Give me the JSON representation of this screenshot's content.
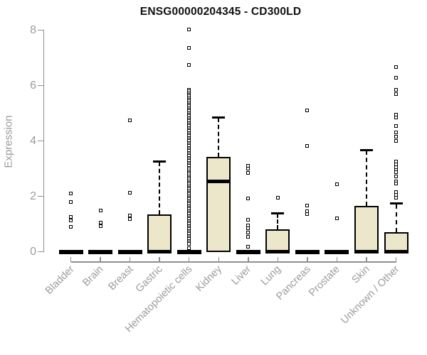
{
  "title": "ENSG00000204345 - CD300LD",
  "colors": {
    "box_fill": "#ece7cb",
    "box_border": "#000000",
    "median": "#000000",
    "outlier": "#000000",
    "axis": "#8f8f8f",
    "tick_label": "#9b9b9b",
    "title": "#111111",
    "background": "#ffffff"
  },
  "chart_data": {
    "type": "boxplot",
    "title": "ENSG00000204345 - CD300LD",
    "xlabel": "",
    "ylabel": "Expression",
    "ylim": [
      0,
      8
    ],
    "y_ticks": [
      0,
      2,
      4,
      6,
      8
    ],
    "grid": false,
    "legend": false,
    "categories": [
      "Bladder",
      "Brain",
      "Breast",
      "Gastric",
      "Hematopoietic cells",
      "Kidney",
      "Liver",
      "Lung",
      "Pancreas",
      "Prostate",
      "Skin",
      "Unknown / Other"
    ],
    "series": [
      {
        "name": "Bladder",
        "q1": 0,
        "median": 0,
        "q3": 0,
        "whisker_low": 0,
        "whisker_high": 0,
        "outliers": [
          2.09,
          1.79,
          1.25,
          1.12,
          0.9
        ]
      },
      {
        "name": "Brain",
        "q1": 0,
        "median": 0,
        "q3": 0,
        "whisker_low": 0,
        "whisker_high": 0,
        "outliers": [
          1.5,
          1.04,
          0.92
        ]
      },
      {
        "name": "Breast",
        "q1": 0,
        "median": 0,
        "q3": 0,
        "whisker_low": 0,
        "whisker_high": 0,
        "outliers": [
          4.74,
          2.12,
          1.3,
          1.18
        ]
      },
      {
        "name": "Gastric",
        "q1": 0,
        "median": 0,
        "q3": 1.33,
        "whisker_low": 0,
        "whisker_high": 3.26,
        "outliers": []
      },
      {
        "name": "Hematopoietic cells",
        "q1": 0,
        "median": 0,
        "q3": 0,
        "whisker_low": 0,
        "whisker_high": 0,
        "outliers": [
          8.03,
          7.35,
          6.75,
          5.85,
          5.79,
          5.73,
          5.67,
          5.61,
          5.55,
          5.49,
          5.43,
          5.37,
          5.31,
          5.25,
          5.19,
          5.13,
          5.07,
          5.01,
          4.95,
          4.89,
          4.83,
          4.77,
          4.71,
          4.65,
          4.59,
          4.53,
          4.47,
          4.41,
          4.35,
          4.29,
          4.23,
          4.17,
          4.11,
          4.05,
          3.99,
          3.93,
          3.87,
          3.81,
          3.75,
          3.69,
          3.63,
          3.57,
          3.51,
          3.45,
          3.39,
          3.33,
          3.27,
          3.21,
          3.15,
          3.09,
          3.03,
          2.97,
          2.91,
          2.85,
          2.79,
          2.73,
          2.67,
          2.61,
          2.55,
          2.49,
          2.43,
          2.37,
          2.31,
          2.25,
          2.19,
          2.13,
          2.07,
          2.01,
          1.95,
          1.89,
          1.83,
          1.77,
          1.71,
          1.65,
          1.59,
          1.53,
          1.47,
          1.41,
          1.35,
          1.29,
          1.23,
          1.17,
          1.11,
          1.05,
          0.99,
          0.93,
          0.87,
          0.81,
          0.75,
          0.69,
          0.63,
          0.57,
          0.51,
          0.45,
          0.39,
          0.33,
          0.27,
          0.13
        ]
      },
      {
        "name": "Kidney",
        "q1": 0,
        "median": 2.54,
        "q3": 3.41,
        "whisker_low": 0,
        "whisker_high": 4.85,
        "outliers": []
      },
      {
        "name": "Liver",
        "q1": 0,
        "median": 0,
        "q3": 0,
        "whisker_low": 0,
        "whisker_high": 0,
        "outliers": [
          3.1,
          3.0,
          2.85,
          1.92,
          1.15,
          0.95,
          0.85,
          0.7,
          0.55,
          0.18
        ]
      },
      {
        "name": "Lung",
        "q1": 0,
        "median": 0,
        "q3": 0.77,
        "whisker_low": 0,
        "whisker_high": 1.39,
        "outliers": [
          1.95
        ]
      },
      {
        "name": "Pancreas",
        "q1": 0,
        "median": 0,
        "q3": 0,
        "whisker_low": 0,
        "whisker_high": 0,
        "outliers": [
          5.1,
          3.82,
          1.67,
          1.45,
          1.35
        ]
      },
      {
        "name": "Prostate",
        "q1": 0,
        "median": 0,
        "q3": 0,
        "whisker_low": 0,
        "whisker_high": 0,
        "outliers": [
          2.44,
          1.2
        ]
      },
      {
        "name": "Skin",
        "q1": 0,
        "median": 0,
        "q3": 1.64,
        "whisker_low": 0,
        "whisker_high": 3.67,
        "outliers": []
      },
      {
        "name": "Unknown / Other",
        "q1": 0,
        "median": 0,
        "q3": 0.69,
        "whisker_low": 0,
        "whisker_high": 1.74,
        "outliers": [
          6.67,
          6.28,
          5.85,
          5.7,
          4.95,
          4.85,
          4.54,
          4.3,
          4.15,
          4.0,
          3.25,
          3.15,
          3.05,
          2.95,
          2.87,
          2.72,
          2.55,
          2.45,
          2.15,
          2.05,
          1.95
        ]
      }
    ]
  }
}
